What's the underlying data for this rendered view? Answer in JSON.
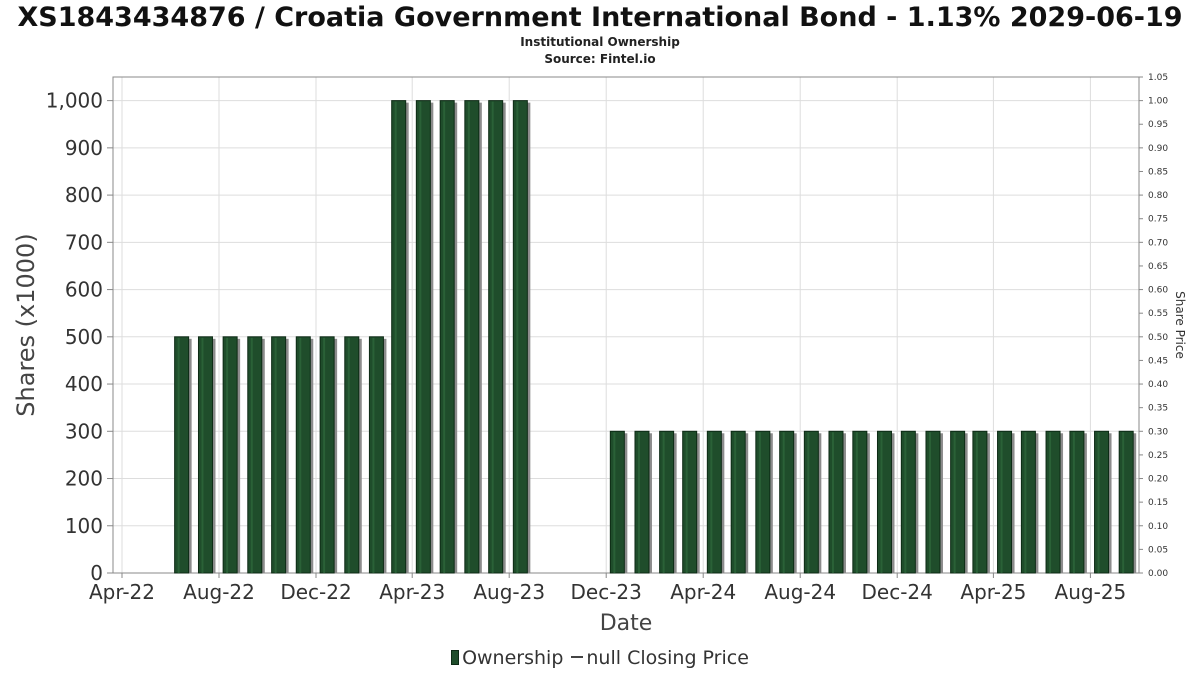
{
  "header": {
    "title": "XS1843434876 / Croatia Government International Bond - 1.13% 2029-06-19",
    "subtitle1": "Institutional Ownership",
    "subtitle2": "Source: Fintel.io"
  },
  "legend": {
    "ownership_label": "Ownership",
    "price_label": "null Closing Price"
  },
  "colors": {
    "bar_fill": "#1f4d2b",
    "bar_edge": "#0d2a15",
    "bar_shadow": "#8c8c8c",
    "grid": "#dddddd",
    "axis": "#888888"
  },
  "chart_data": {
    "type": "bar",
    "title": "XS1843434876 / Croatia Government International Bond - 1.13% 2029-06-19",
    "xlabel": "Date",
    "ylabel": "Shares (x1000)",
    "y2label": "Share Price",
    "ylim": [
      0,
      1050
    ],
    "y2lim": [
      0,
      1.05
    ],
    "yticks": [
      "0",
      "100",
      "200",
      "300",
      "400",
      "500",
      "600",
      "700",
      "800",
      "900",
      "1,000"
    ],
    "y2ticks": [
      "0.00",
      "0.05",
      "0.10",
      "0.15",
      "0.20",
      "0.25",
      "0.30",
      "0.35",
      "0.40",
      "0.45",
      "0.50",
      "0.55",
      "0.60",
      "0.65",
      "0.70",
      "0.75",
      "0.80",
      "0.85",
      "0.90",
      "0.95",
      "1.00",
      "1.05"
    ],
    "xticks": [
      "Apr-22",
      "Aug-22",
      "Dec-22",
      "Apr-23",
      "Aug-23",
      "Dec-23",
      "Apr-24",
      "Aug-24",
      "Dec-24",
      "Apr-25",
      "Aug-25"
    ],
    "grid": true,
    "legend_position": "bottom",
    "series": [
      {
        "name": "Ownership",
        "x": [
          "2022-06-15",
          "2022-07-15",
          "2022-08-15",
          "2022-09-15",
          "2022-10-15",
          "2022-11-15",
          "2022-12-15",
          "2023-01-15",
          "2023-02-15",
          "2023-03-15",
          "2023-04-15",
          "2023-05-15",
          "2023-06-15",
          "2023-07-15",
          "2023-08-15",
          "2023-12-15",
          "2024-01-15",
          "2024-02-15",
          "2024-03-15",
          "2024-04-15",
          "2024-05-15",
          "2024-06-15",
          "2024-07-15",
          "2024-08-15",
          "2024-09-15",
          "2024-10-15",
          "2024-11-15",
          "2024-12-15",
          "2025-01-15",
          "2025-02-15",
          "2025-03-15",
          "2025-04-15",
          "2025-05-15",
          "2025-06-15",
          "2025-07-15",
          "2025-08-15",
          "2025-09-15"
        ],
        "values": [
          500,
          500,
          500,
          500,
          500,
          500,
          500,
          500,
          500,
          1000,
          1000,
          1000,
          1000,
          1000,
          1000,
          300,
          300,
          300,
          300,
          300,
          300,
          300,
          300,
          300,
          300,
          300,
          300,
          300,
          300,
          300,
          300,
          300,
          300,
          300,
          300,
          300,
          300
        ]
      },
      {
        "name": "null Closing Price",
        "x": [],
        "values": []
      }
    ]
  }
}
